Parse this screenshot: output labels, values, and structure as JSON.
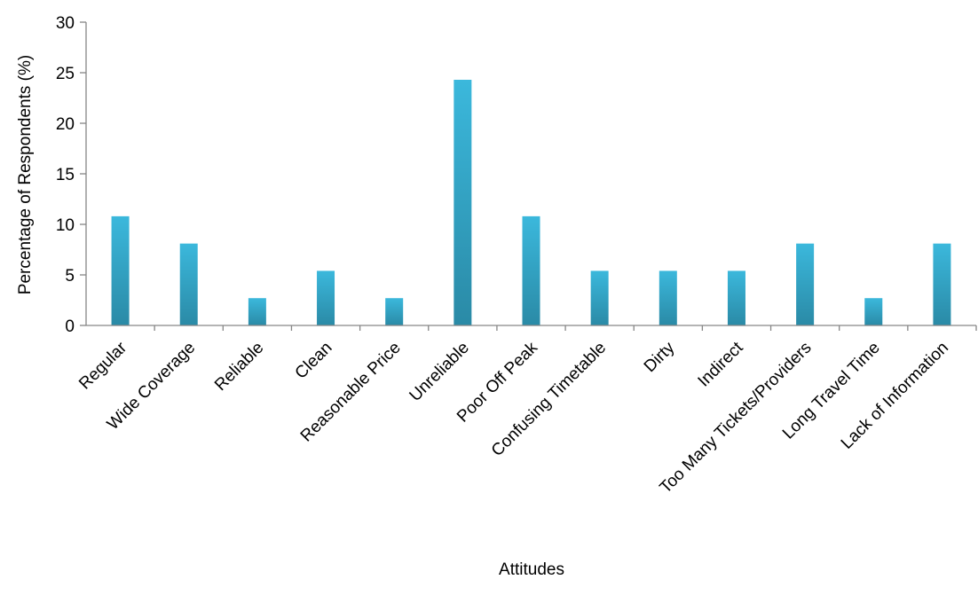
{
  "chart_data": {
    "type": "bar",
    "title": "",
    "xlabel": "Attitudes",
    "ylabel": "Percentage of Respondents (%)",
    "ylim": [
      0,
      30
    ],
    "yticks": [
      0,
      5,
      10,
      15,
      20,
      25,
      30
    ],
    "grid": false,
    "legend": "none",
    "categories": [
      "Regular",
      "Wide Coverage",
      "Reliable",
      "Clean",
      "Reasonable Price",
      "Unreliable",
      "Poor Off Peak",
      "Confusing Timetable",
      "Dirty",
      "Indirect",
      "Too Many Tickets/Providers",
      "Long Travel Time",
      "Lack of Information"
    ],
    "series": [
      {
        "values": [
          10.8,
          8.1,
          2.7,
          5.4,
          2.7,
          24.3,
          10.8,
          5.4,
          5.4,
          5.4,
          8.1,
          2.7,
          8.1
        ]
      }
    ],
    "colors": {
      "bar_top": "#3bb8dc",
      "bar_bottom": "#2a8aa6",
      "axis": "#868686"
    }
  }
}
